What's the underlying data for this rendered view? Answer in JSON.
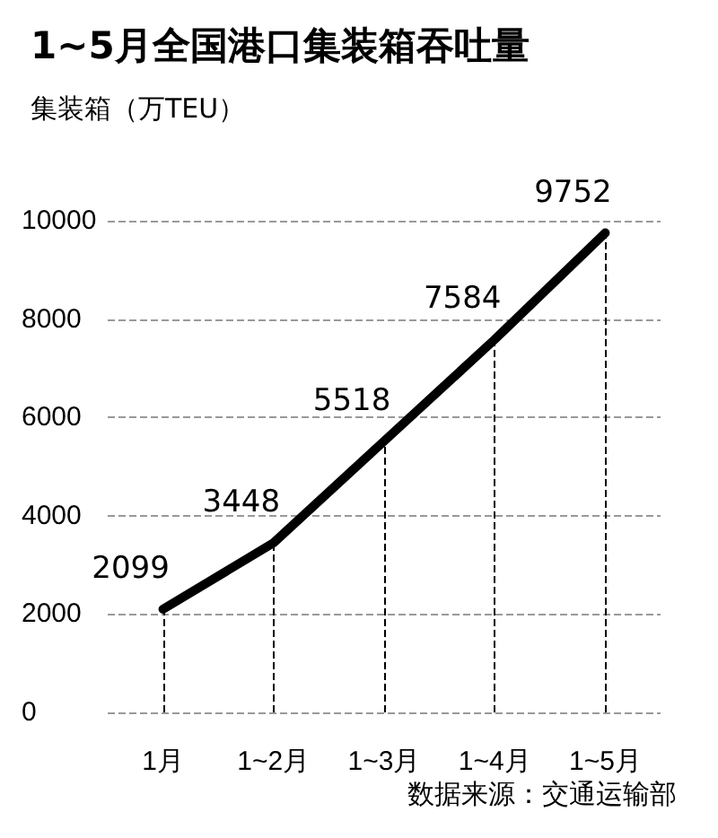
{
  "chart_data": {
    "type": "line",
    "title": "1~5月全国港口集装箱吞吐量",
    "ylabel": "集装箱（万TEU）",
    "categories": [
      "1月",
      "1~2月",
      "1~3月",
      "1~4月",
      "1~5月"
    ],
    "series": [
      {
        "color": "#000000",
        "values": [
          2099,
          3448,
          5518,
          7584,
          9752
        ]
      }
    ],
    "data_labels": true,
    "ylim": [
      0,
      10000
    ],
    "yticks": [
      0,
      2000,
      4000,
      6000,
      8000,
      10000
    ],
    "grid": "xy",
    "marker": "none",
    "line_style": "solid",
    "annotations": [
      "数据来源：交通运输部"
    ]
  }
}
